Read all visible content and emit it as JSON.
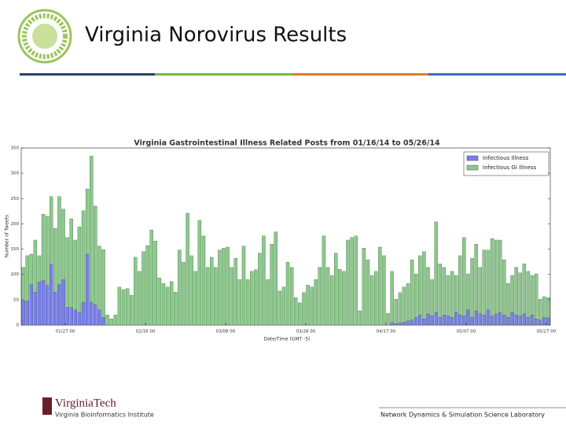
{
  "slide": {
    "title": "Virginia Norovirus Results",
    "logo_left": "VirginiaTech",
    "logo_left_sub": "Virginia Bioinformatics Institute",
    "logo_right": "Network Dynamics & Simulation Science Laboratory"
  },
  "chart_data": {
    "type": "bar",
    "title": "Virginia Gastrointestinal Illness Related Posts from 01/16/14 to 05/26/14",
    "x_label": "Date/Time (GMT -5)",
    "y_label": "Number of Tweets",
    "x": [
      "2014-01-16",
      "2014-01-17",
      "2014-01-18",
      "2014-01-19",
      "2014-01-20",
      "2014-01-21",
      "2014-01-22",
      "2014-01-23",
      "2014-01-24",
      "2014-01-25",
      "2014-01-26",
      "2014-01-27",
      "2014-01-28",
      "2014-01-29",
      "2014-01-30",
      "2014-01-31",
      "2014-02-01",
      "2014-02-02",
      "2014-02-03",
      "2014-02-04",
      "2014-02-05",
      "2014-02-06",
      "2014-02-07",
      "2014-02-08",
      "2014-02-09",
      "2014-02-10",
      "2014-02-11",
      "2014-02-12",
      "2014-02-13",
      "2014-02-14",
      "2014-02-15",
      "2014-02-16",
      "2014-02-17",
      "2014-02-18",
      "2014-02-19",
      "2014-02-20",
      "2014-02-21",
      "2014-02-22",
      "2014-02-23",
      "2014-02-24",
      "2014-02-25",
      "2014-02-26",
      "2014-02-27",
      "2014-02-28",
      "2014-03-01",
      "2014-03-02",
      "2014-03-03",
      "2014-03-04",
      "2014-03-05",
      "2014-03-06",
      "2014-03-07",
      "2014-03-08",
      "2014-03-09",
      "2014-03-10",
      "2014-03-11",
      "2014-03-12",
      "2014-03-13",
      "2014-03-14",
      "2014-03-15",
      "2014-03-16",
      "2014-03-17",
      "2014-03-18",
      "2014-03-19",
      "2014-03-20",
      "2014-03-21",
      "2014-03-22",
      "2014-03-23",
      "2014-03-24",
      "2014-03-25",
      "2014-03-26",
      "2014-03-27",
      "2014-03-28",
      "2014-03-29",
      "2014-03-30",
      "2014-03-31",
      "2014-04-01",
      "2014-04-02",
      "2014-04-03",
      "2014-04-04",
      "2014-04-05",
      "2014-04-06",
      "2014-04-07",
      "2014-04-08",
      "2014-04-09",
      "2014-04-10",
      "2014-04-11",
      "2014-04-12",
      "2014-04-13",
      "2014-04-14",
      "2014-04-15",
      "2014-04-16",
      "2014-04-17",
      "2014-04-18",
      "2014-04-19",
      "2014-04-20",
      "2014-04-21",
      "2014-04-22",
      "2014-04-23",
      "2014-04-24",
      "2014-04-25",
      "2014-04-26",
      "2014-04-27",
      "2014-04-28",
      "2014-04-29",
      "2014-04-30",
      "2014-05-01",
      "2014-05-02",
      "2014-05-03",
      "2014-05-04",
      "2014-05-05",
      "2014-05-06",
      "2014-05-07",
      "2014-05-08",
      "2014-05-09",
      "2014-05-10",
      "2014-05-11",
      "2014-05-12",
      "2014-05-13",
      "2014-05-14",
      "2014-05-15",
      "2014-05-16",
      "2014-05-17",
      "2014-05-18",
      "2014-05-19",
      "2014-05-20",
      "2014-05-21",
      "2014-05-22",
      "2014-05-23",
      "2014-05-24",
      "2014-05-25",
      "2014-05-26",
      "2014-05-27"
    ],
    "series": [
      {
        "name": "Infectious GI Illness",
        "color": "#8cc98c",
        "values": [
          114,
          137,
          140,
          168,
          137,
          219,
          215,
          254,
          191,
          254,
          229,
          173,
          210,
          168,
          194,
          226,
          269,
          334,
          235,
          156,
          149,
          20,
          12,
          20,
          75,
          70,
          72,
          59,
          134,
          106,
          145,
          157,
          188,
          166,
          93,
          82,
          75,
          86,
          65,
          148,
          124,
          221,
          137,
          106,
          207,
          176,
          114,
          134,
          114,
          148,
          152,
          154,
          114,
          132,
          90,
          156,
          90,
          106,
          109,
          142,
          176,
          90,
          160,
          184,
          67,
          75,
          124,
          114,
          54,
          44,
          64,
          79,
          75,
          90,
          114,
          176,
          114,
          98,
          142,
          110,
          106,
          168,
          173,
          176,
          28,
          152,
          129,
          98,
          106,
          154,
          137,
          23,
          106,
          51,
          64,
          75,
          82,
          129,
          101,
          137,
          145,
          114,
          90,
          204,
          121,
          114,
          98,
          106,
          98,
          137,
          173,
          101,
          132,
          160,
          114,
          148,
          148,
          171,
          168,
          168,
          129,
          82,
          98,
          114,
          103,
          121,
          106,
          98,
          101,
          51,
          56,
          54
        ]
      },
      {
        "name": "Infectious Illness",
        "color": "#7b7ef2",
        "values": [
          48,
          48,
          80,
          65,
          85,
          88,
          78,
          120,
          65,
          80,
          90,
          35,
          35,
          30,
          25,
          45,
          140,
          45,
          40,
          30,
          15,
          0,
          0,
          0,
          0,
          0,
          0,
          0,
          0,
          0,
          0,
          0,
          0,
          0,
          0,
          0,
          0,
          0,
          0,
          0,
          0,
          0,
          0,
          0,
          0,
          0,
          0,
          0,
          0,
          0,
          0,
          0,
          0,
          0,
          0,
          0,
          0,
          0,
          0,
          0,
          0,
          0,
          0,
          0,
          0,
          0,
          0,
          0,
          0,
          0,
          0,
          0,
          0,
          0,
          0,
          0,
          0,
          0,
          0,
          0,
          0,
          0,
          0,
          0,
          0,
          0,
          0,
          0,
          0,
          0,
          0,
          0,
          5,
          3,
          4,
          6,
          8,
          10,
          15,
          20,
          12,
          22,
          18,
          25,
          15,
          20,
          18,
          15,
          25,
          20,
          18,
          30,
          15,
          28,
          22,
          20,
          30,
          18,
          22,
          25,
          20,
          15,
          25,
          20,
          18,
          22,
          15,
          20,
          12,
          10,
          15,
          14
        ]
      }
    ],
    "legend": "upper right",
    "xlim": [
      "2014-01-16",
      "2014-05-28"
    ],
    "xticks": [
      {
        "value": "2014-01-27",
        "label": "01/27 00"
      },
      {
        "value": "2014-02-16",
        "label": "02/16 00"
      },
      {
        "value": "2014-03-08",
        "label": "03/08 00"
      },
      {
        "value": "2014-03-28",
        "label": "03/28 00"
      },
      {
        "value": "2014-04-17",
        "label": "04/17 00"
      },
      {
        "value": "2014-05-07",
        "label": "05/07 00"
      },
      {
        "value": "2014-05-27",
        "label": "05/27 00"
      }
    ],
    "ylim": [
      0,
      350
    ],
    "yticks": [
      0,
      50,
      100,
      150,
      200,
      250,
      300,
      350
    ]
  }
}
